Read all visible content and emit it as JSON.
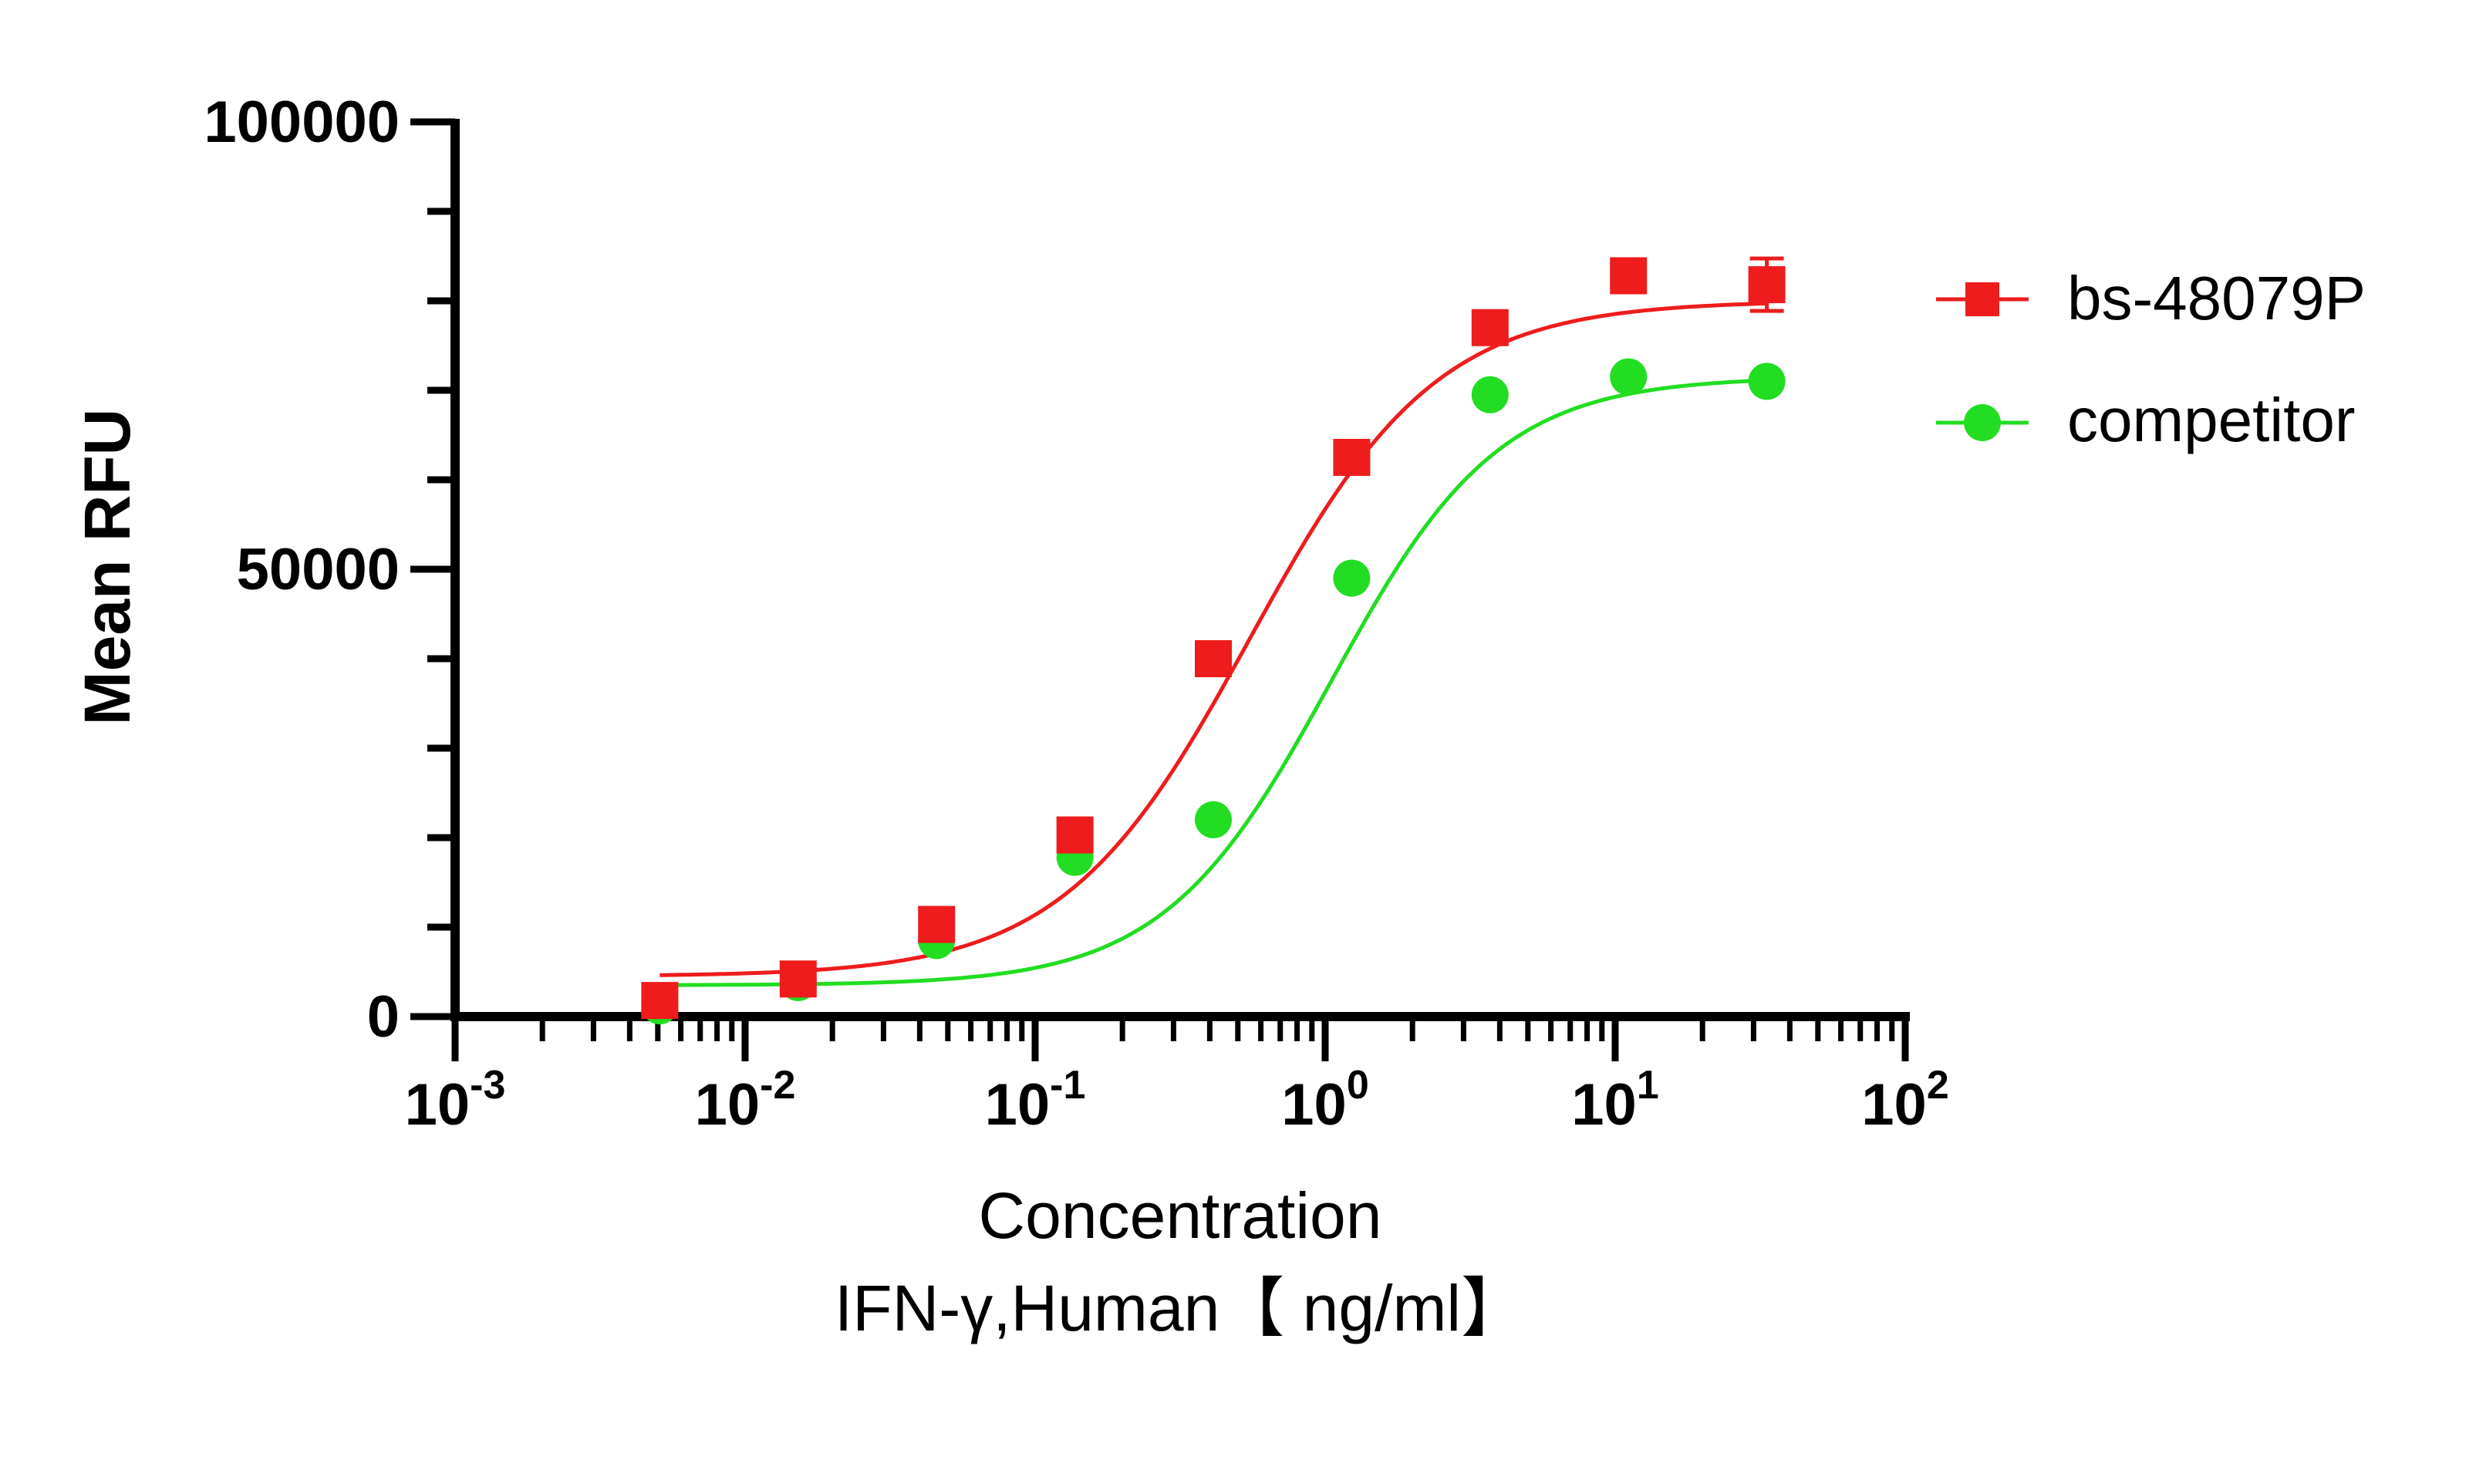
{
  "chart_data": {
    "type": "scatter",
    "x_scale": "log",
    "xlim": [
      0.001,
      100
    ],
    "ylim": [
      0,
      100000
    ],
    "x_ticks": [
      {
        "base": "10",
        "exp": "-3"
      },
      {
        "base": "10",
        "exp": "-2"
      },
      {
        "base": "10",
        "exp": "-1"
      },
      {
        "base": "10",
        "exp": "0"
      },
      {
        "base": "10",
        "exp": "1"
      },
      {
        "base": "10",
        "exp": "2"
      }
    ],
    "y_tick_labels": [
      "0",
      "50000",
      "100000"
    ],
    "ylabel": "Mean RFU",
    "xlabel_line1": "Concentration",
    "xlabel_line2": "IFN-γ,Human【 ng/ml】",
    "legend_position": "right",
    "grid": false,
    "series": [
      {
        "name": "bs-48079P",
        "color": "#ee1c1c",
        "marker": "square",
        "x": [
          0.00508,
          0.01524,
          0.04572,
          0.1372,
          0.4115,
          1.2346,
          3.7037,
          11.111,
          33.333
        ],
        "y": [
          1800,
          4200,
          10300,
          20300,
          40000,
          62500,
          77000,
          82800,
          81800
        ],
        "fit": {
          "bottom": 4500,
          "top": 80000,
          "ec50": 0.55,
          "hill": 1.35
        }
      },
      {
        "name": "competitor",
        "color": "#22dd22",
        "marker": "circle",
        "x": [
          0.00508,
          0.01524,
          0.04572,
          0.1372,
          0.4115,
          1.2346,
          3.7037,
          11.111,
          33.333
        ],
        "y": [
          1200,
          3800,
          8500,
          17800,
          22000,
          49000,
          69500,
          71500,
          71000
        ],
        "fit": {
          "bottom": 3500,
          "top": 71500,
          "ec50": 1.05,
          "hill": 1.5
        }
      }
    ]
  }
}
